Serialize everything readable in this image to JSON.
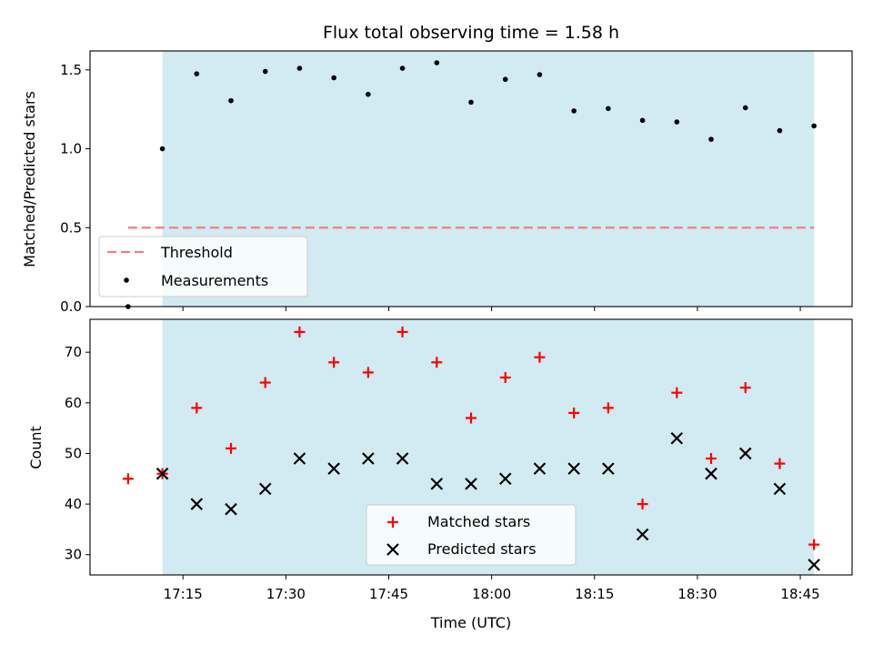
{
  "chart_data": [
    {
      "type": "scatter",
      "title": "Flux total observing time = 1.58 h",
      "ylabel": "Matched/Predicted stars",
      "ylim": [
        0,
        1.62
      ],
      "yticks": [
        "0.0",
        "0.5",
        "1.0",
        "1.5"
      ],
      "shaded_region": {
        "from": "17:12",
        "to": "18:47",
        "color": "#add8e6"
      },
      "legend": {
        "position": "lower-left",
        "entries": [
          "Threshold",
          "Measurements"
        ]
      },
      "series": [
        {
          "name": "Threshold",
          "style": "dashed-line",
          "color": "#f08080",
          "x": [
            "17:07",
            "18:47"
          ],
          "values": [
            0.5,
            0.5
          ]
        },
        {
          "name": "Measurements",
          "style": "dot",
          "color": "#000000",
          "x": [
            "17:07",
            "17:12",
            "17:17",
            "17:22",
            "17:27",
            "17:32",
            "17:37",
            "17:42",
            "17:47",
            "17:52",
            "17:57",
            "18:02",
            "18:07",
            "18:12",
            "18:17",
            "18:22",
            "18:27",
            "18:32",
            "18:37",
            "18:42",
            "18:47"
          ],
          "values": [
            0.0,
            1.0,
            1.475,
            1.305,
            1.49,
            1.51,
            1.45,
            1.345,
            1.51,
            1.545,
            1.295,
            1.44,
            1.47,
            1.24,
            1.255,
            1.18,
            1.17,
            1.06,
            1.26,
            1.115,
            1.145
          ]
        }
      ]
    },
    {
      "type": "scatter",
      "xlabel": "Time (UTC)",
      "ylabel": "Count",
      "ylim": [
        26,
        76.5
      ],
      "yticks": [
        "30",
        "40",
        "50",
        "60",
        "70"
      ],
      "xticks": [
        "17:15",
        "17:30",
        "17:45",
        "18:00",
        "18:15",
        "18:30",
        "18:45"
      ],
      "shaded_region": {
        "from": "17:12",
        "to": "18:47",
        "color": "#add8e6"
      },
      "legend": {
        "position": "lower-center",
        "entries": [
          "Matched stars",
          "Predicted stars"
        ]
      },
      "series": [
        {
          "name": "Matched stars",
          "marker": "plus",
          "color": "#ff0000",
          "x": [
            "17:07",
            "17:12",
            "17:17",
            "17:22",
            "17:27",
            "17:32",
            "17:37",
            "17:42",
            "17:47",
            "17:52",
            "17:57",
            "18:02",
            "18:07",
            "18:12",
            "18:17",
            "18:22",
            "18:27",
            "18:32",
            "18:37",
            "18:42",
            "18:47"
          ],
          "values": [
            45,
            46,
            59,
            51,
            64,
            74,
            68,
            66,
            74,
            68,
            57,
            65,
            69,
            58,
            59,
            40,
            62,
            49,
            63,
            48,
            32
          ]
        },
        {
          "name": "Predicted stars",
          "marker": "x",
          "color": "#000000",
          "x": [
            "17:12",
            "17:17",
            "17:22",
            "17:27",
            "17:32",
            "17:37",
            "17:42",
            "17:47",
            "17:52",
            "17:57",
            "18:02",
            "18:07",
            "18:12",
            "18:17",
            "18:22",
            "18:27",
            "18:32",
            "18:37",
            "18:42",
            "18:47"
          ],
          "values": [
            46,
            40,
            39,
            43,
            49,
            47,
            49,
            49,
            44,
            44,
            45,
            47,
            47,
            47,
            34,
            53,
            46,
            50,
            43,
            28
          ]
        }
      ]
    }
  ]
}
